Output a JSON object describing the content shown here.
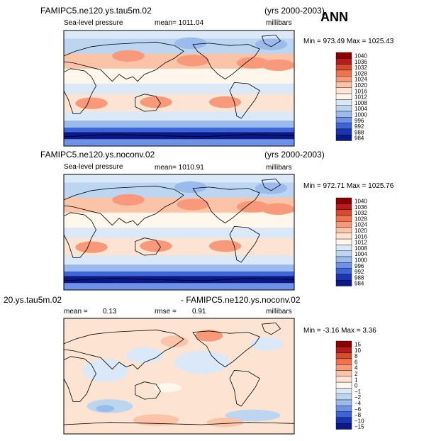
{
  "season": "ANN",
  "panels": [
    {
      "case_title": "FAMIPC5.ne120.ys.tau5m.02",
      "years": "(yrs 2000-2003)",
      "variable": "Sea-level pressure",
      "mean_text": "mean= 1011.04",
      "units": "millibars",
      "minmax": "Min = 973.49  Max = 1025.43"
    },
    {
      "case_title": "FAMIPC5.ne120.ys.noconv.02",
      "years": "(yrs 2000-2003)",
      "variable": "Sea-level pressure",
      "mean_text": "mean= 1010.91",
      "units": "millibars",
      "minmax": "Min = 972.71  Max = 1025.76"
    },
    {
      "case_title": "20.ys.tau5m.02",
      "case_title_2": "- FAMIPC5.ne120.ys.noconv.02",
      "mean_label": "mean =",
      "mean_value": "0.13",
      "rmse_label": "rmse =",
      "rmse_value": "0.91",
      "units": "millibars",
      "minmax": "Min =  -3.16  Max =   3.36"
    }
  ],
  "chart_data": [
    {
      "type": "heatmap",
      "title": "FAMIPC5.ne120.ys.tau5m.02 Sea-level pressure (yrs 2000-2003) ANN",
      "units": "millibars",
      "mean": 1011.04,
      "min": 973.49,
      "max": 1025.43,
      "colorbar_levels": [
        "1040",
        "1036",
        "1032",
        "1028",
        "1024",
        "1020",
        "1016",
        "1012",
        "1008",
        "1004",
        "1000",
        "996",
        "992",
        "988",
        "984"
      ]
    },
    {
      "type": "heatmap",
      "title": "FAMIPC5.ne120.ys.noconv.02 Sea-level pressure (yrs 2000-2003) ANN",
      "units": "millibars",
      "mean": 1010.91,
      "min": 972.71,
      "max": 1025.76,
      "colorbar_levels": [
        "1040",
        "1036",
        "1032",
        "1028",
        "1024",
        "1020",
        "1016",
        "1012",
        "1008",
        "1004",
        "1000",
        "996",
        "992",
        "988",
        "984"
      ]
    },
    {
      "type": "heatmap",
      "title": "20.ys.tau5m.02 - FAMIPC5.ne120.ys.noconv.02",
      "units": "millibars",
      "mean": 0.13,
      "rmse": 0.91,
      "min": -3.16,
      "max": 3.36,
      "colorbar_levels": [
        "15",
        "10",
        "8",
        "6",
        "4",
        "2",
        "1",
        "0",
        "−1",
        "−2",
        "−4",
        "−6",
        "−8",
        "−10",
        "−15"
      ]
    }
  ],
  "colors": {
    "abs_scale": [
      "#8b0000",
      "#b71c1c",
      "#d84a2e",
      "#ef7350",
      "#f7997a",
      "#fbc4a9",
      "#fde3d1",
      "#fff6ec",
      "#dbe8f7",
      "#bcd6f1",
      "#9bbbec",
      "#6f92e6",
      "#3e65d7",
      "#1a34b4",
      "#0a1987"
    ],
    "diff_scale": [
      "#8b0000",
      "#b71c1c",
      "#d84a2e",
      "#ef7350",
      "#f7997a",
      "#fbc4a9",
      "#fde3d1",
      "#fff6ec",
      "#dbe8f7",
      "#bcd6f1",
      "#9bbbec",
      "#6f92e6",
      "#3e65d7",
      "#1a34b4",
      "#0a1987"
    ]
  }
}
